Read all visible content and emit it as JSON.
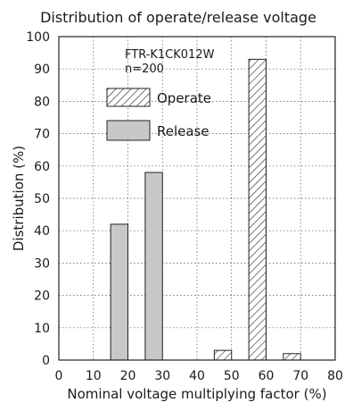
{
  "chart_data": {
    "type": "bar",
    "title": "Distribution of operate/release voltage",
    "xlabel": "Nominal voltage multiplying factor (%)",
    "ylabel": "Distribution (%)",
    "xlim": [
      0,
      80
    ],
    "ylim": [
      0,
      100
    ],
    "x_ticks": [
      0,
      10,
      20,
      30,
      40,
      50,
      60,
      70,
      80
    ],
    "y_ticks": [
      0,
      10,
      20,
      30,
      40,
      50,
      60,
      70,
      80,
      90,
      100
    ],
    "grid": true,
    "bin_width": 5,
    "annotation": [
      "FTR-K1CK012W",
      "n=200"
    ],
    "legend_position": "upper-left",
    "series": [
      {
        "name": "Operate",
        "style": "hatched",
        "color": "#ffffff",
        "bins": [
          {
            "x_start": 45,
            "x_end": 50,
            "value": 3
          },
          {
            "x_start": 55,
            "x_end": 60,
            "value": 93
          },
          {
            "x_start": 65,
            "x_end": 70,
            "value": 2
          }
        ]
      },
      {
        "name": "Release",
        "style": "solid",
        "color": "#c8c8c8",
        "bins": [
          {
            "x_start": 15,
            "x_end": 20,
            "value": 42
          },
          {
            "x_start": 25,
            "x_end": 30,
            "value": 58
          }
        ]
      }
    ]
  }
}
